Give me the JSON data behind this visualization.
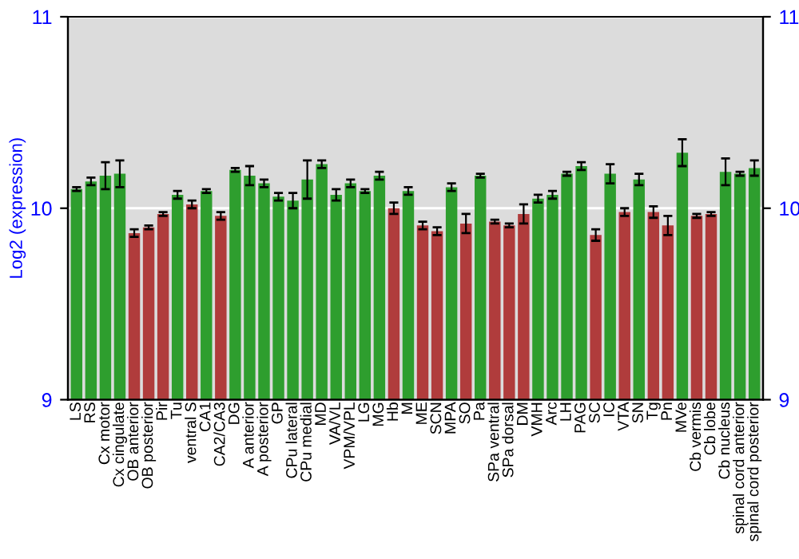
{
  "chart_data": {
    "type": "bar",
    "ylabel": "Log2 (expression)",
    "categories": [
      "LS",
      "RS",
      "Cx motor",
      "Cx cingulate",
      "OB anterior",
      "OB posterior",
      "Pir",
      "Tu",
      "ventral S",
      "CA1",
      "CA2/CA3",
      "DG",
      "A anterior",
      "A posterior",
      "GP",
      "CPu lateral",
      "CPu medial",
      "MD",
      "VA/VL",
      "VPM/VPL",
      "LG",
      "MG",
      "Hb",
      "M",
      "ME",
      "SCN",
      "MPA",
      "SO",
      "Pa",
      "SPa ventral",
      "SPa dorsal",
      "DM",
      "VMH",
      "Arc",
      "LH",
      "PAG",
      "SC",
      "IC",
      "VTA",
      "SN",
      "Tg",
      "Pn",
      "MVe",
      "Cb vermis",
      "Cb lobe",
      "Cb nucleus",
      "spinal cord anterior",
      "spinal cord posterior"
    ],
    "values": [
      10.1,
      10.14,
      10.17,
      10.18,
      9.87,
      9.9,
      9.97,
      10.07,
      10.02,
      10.09,
      9.96,
      10.2,
      10.17,
      10.13,
      10.06,
      10.04,
      10.15,
      10.23,
      10.07,
      10.13,
      10.09,
      10.17,
      10.0,
      10.09,
      9.91,
      9.88,
      10.11,
      9.92,
      10.17,
      9.93,
      9.91,
      9.97,
      10.05,
      10.07,
      10.18,
      10.22,
      9.86,
      10.18,
      9.98,
      10.15,
      9.98,
      9.91,
      10.29,
      9.96,
      9.97,
      10.19,
      10.18,
      10.21
    ],
    "errors": [
      0.01,
      0.02,
      0.07,
      0.07,
      0.02,
      0.01,
      0.01,
      0.02,
      0.02,
      0.01,
      0.02,
      0.01,
      0.05,
      0.02,
      0.02,
      0.04,
      0.1,
      0.02,
      0.03,
      0.02,
      0.01,
      0.02,
      0.03,
      0.02,
      0.02,
      0.02,
      0.02,
      0.05,
      0.01,
      0.01,
      0.01,
      0.05,
      0.02,
      0.02,
      0.01,
      0.02,
      0.03,
      0.05,
      0.02,
      0.03,
      0.03,
      0.05,
      0.07,
      0.01,
      0.01,
      0.07,
      0.01,
      0.04
    ],
    "colors": [
      "#2e9e2e",
      "#2e9e2e",
      "#2e9e2e",
      "#2e9e2e",
      "#b03c3c",
      "#b03c3c",
      "#b03c3c",
      "#2e9e2e",
      "#b03c3c",
      "#2e9e2e",
      "#b03c3c",
      "#2e9e2e",
      "#2e9e2e",
      "#2e9e2e",
      "#2e9e2e",
      "#2e9e2e",
      "#2e9e2e",
      "#2e9e2e",
      "#2e9e2e",
      "#2e9e2e",
      "#2e9e2e",
      "#2e9e2e",
      "#b03c3c",
      "#2e9e2e",
      "#b03c3c",
      "#b03c3c",
      "#2e9e2e",
      "#b03c3c",
      "#2e9e2e",
      "#b03c3c",
      "#b03c3c",
      "#b03c3c",
      "#2e9e2e",
      "#2e9e2e",
      "#2e9e2e",
      "#2e9e2e",
      "#b03c3c",
      "#2e9e2e",
      "#b03c3c",
      "#2e9e2e",
      "#b03c3c",
      "#b03c3c",
      "#2e9e2e",
      "#b03c3c",
      "#b03c3c",
      "#2e9e2e",
      "#2e9e2e",
      "#2e9e2e"
    ],
    "ylim": [
      9,
      11
    ],
    "yticks": [
      9,
      10,
      11
    ],
    "y2lim": [
      9,
      11
    ],
    "y2ticks": [
      9,
      10,
      11
    ],
    "grid": "y",
    "legend": false
  }
}
